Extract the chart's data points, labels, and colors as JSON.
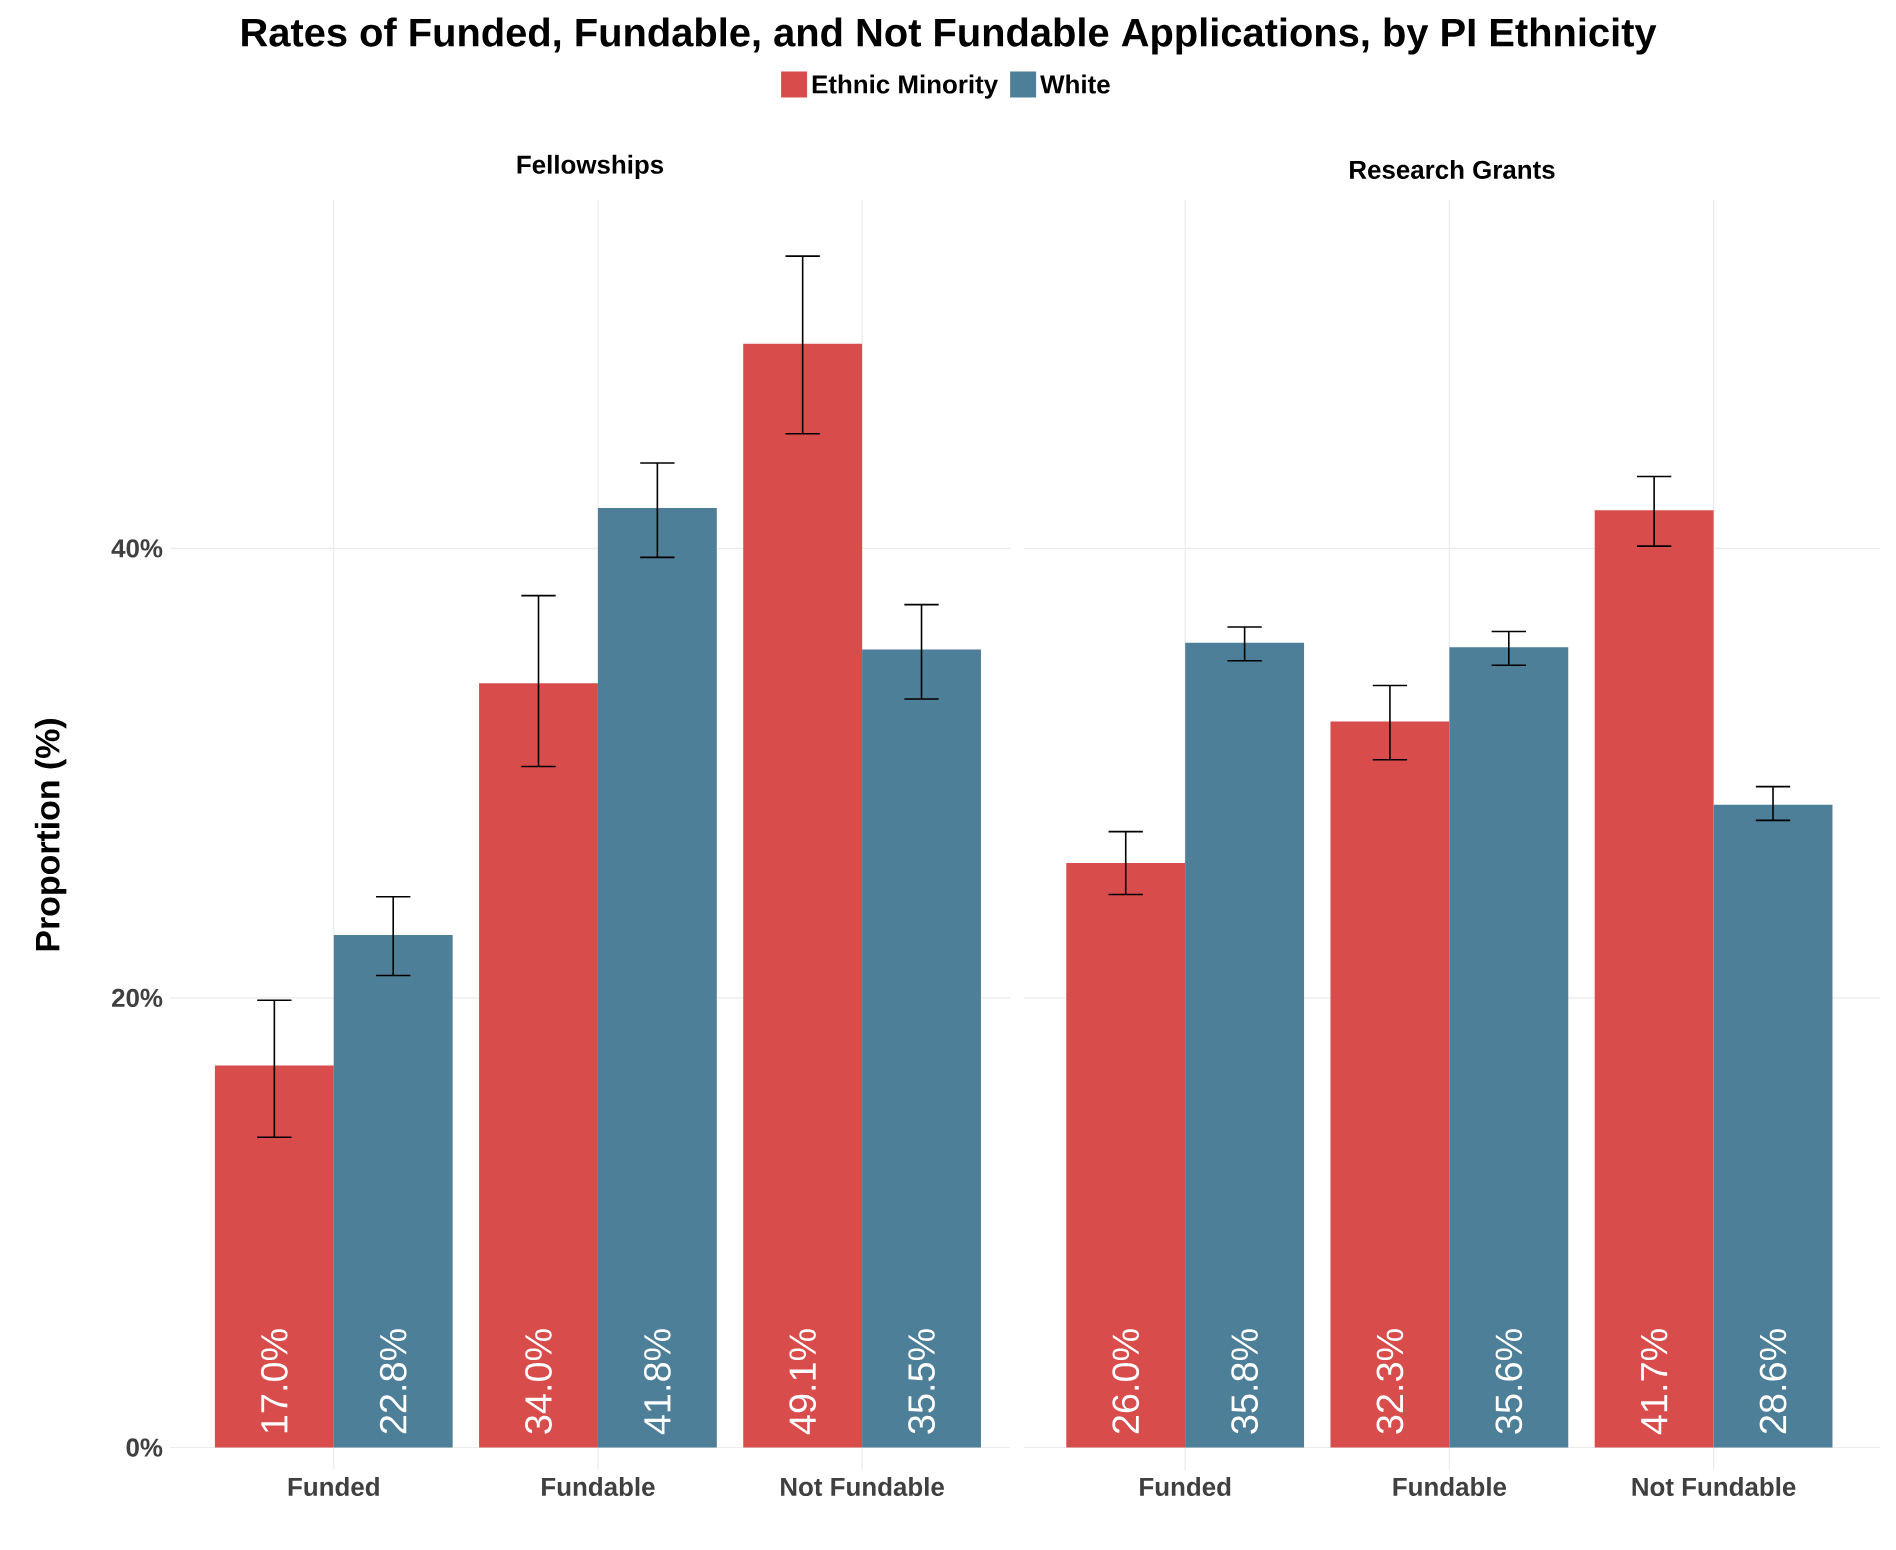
{
  "chart_data": [
    {
      "type": "bar",
      "title": "Rates of Funded, Fundable, and Not Fundable Applications, by PI Ethnicity",
      "subtitle": "Fellowships",
      "ylabel": "Proportion (%)",
      "categories": [
        "Funded",
        "Fundable",
        "Not Fundable"
      ],
      "series": [
        {
          "name": "Ethnic Minority",
          "color": "#d94c4c",
          "values": [
            17.0,
            34.0,
            49.1
          ],
          "errors": [
            [
              13.8,
              19.9
            ],
            [
              30.3,
              37.9
            ],
            [
              45.1,
              53.0
            ]
          ],
          "value_labels": [
            "17.0%",
            "34.0%",
            "49.1%"
          ]
        },
        {
          "name": "White",
          "color": "#4d7f99",
          "values": [
            22.8,
            41.8,
            35.5
          ],
          "errors": [
            [
              21.0,
              24.5
            ],
            [
              39.6,
              43.8
            ],
            [
              33.3,
              37.5
            ]
          ],
          "value_labels": [
            "22.8%",
            "41.8%",
            "35.5%"
          ]
        }
      ],
      "ylim": [
        -1,
        55.5
      ],
      "yticks": [
        {
          "value": 0,
          "label": "0%"
        },
        {
          "value": 20,
          "label": "20%"
        },
        {
          "value": 40,
          "label": "40%"
        }
      ],
      "grid": true,
      "legend": "top"
    },
    {
      "type": "bar",
      "subtitle": "Research Grants",
      "categories": [
        "Funded",
        "Fundable",
        "Not Fundable"
      ],
      "series": [
        {
          "color": "#d94c4c",
          "values": [
            26.0,
            32.3,
            41.7
          ],
          "errors": [
            [
              24.6,
              27.4
            ],
            [
              30.6,
              33.9
            ],
            [
              40.1,
              43.2
            ]
          ],
          "value_labels": [
            "26.0%",
            "32.3%",
            "41.7%"
          ]
        },
        {
          "color": "#4d7f99",
          "values": [
            35.8,
            35.6,
            28.6
          ],
          "errors": [
            [
              35.0,
              36.5
            ],
            [
              34.8,
              36.3
            ],
            [
              27.9,
              29.4
            ]
          ],
          "value_labels": [
            "35.8%",
            "35.6%",
            "28.6%"
          ]
        }
      ],
      "ylim": [
        -1,
        55.5
      ],
      "yticks": [
        {
          "value": 0,
          "label": null
        },
        {
          "value": 20,
          "label": null
        },
        {
          "value": 40,
          "label": null
        }
      ],
      "grid": true,
      "tick_labels": "x"
    }
  ]
}
